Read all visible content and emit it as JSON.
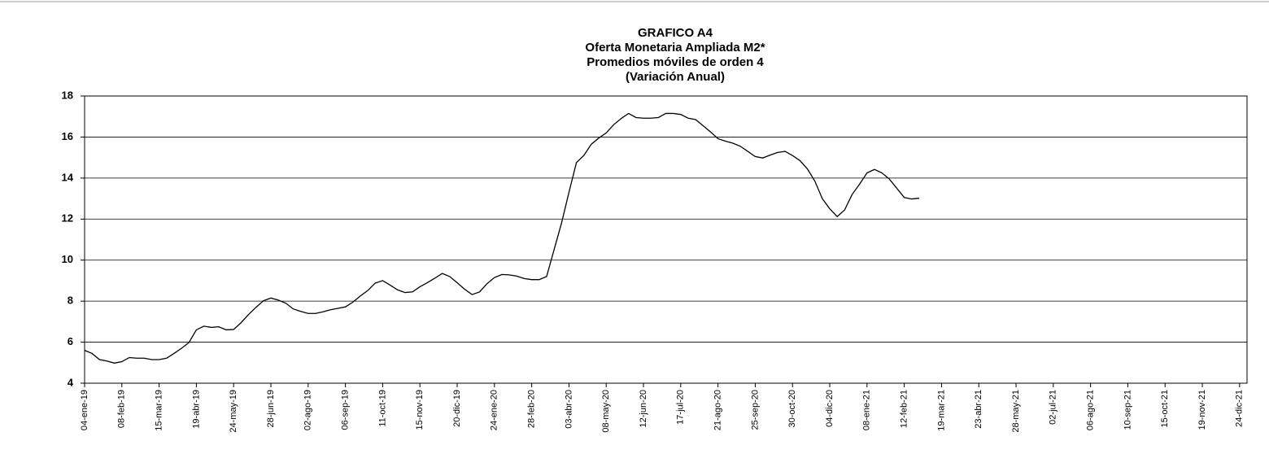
{
  "chart_data": {
    "type": "line",
    "title": "GRAFICO A4",
    "subtitle": [
      "Oferta Monetaria Ampliada M2*",
      "Promedios móviles de orden 4",
      "(Variación Anual)"
    ],
    "categories": [
      "04-ene-19",
      null,
      null,
      null,
      null,
      "08-feb-19",
      null,
      null,
      null,
      null,
      "15-mar-19",
      null,
      null,
      null,
      null,
      "19-abr-19",
      null,
      null,
      null,
      null,
      "24-may-19",
      null,
      null,
      null,
      null,
      "28-jun-19",
      null,
      null,
      null,
      null,
      "02-ago-19",
      null,
      null,
      null,
      null,
      "06-sep-19",
      null,
      null,
      null,
      null,
      "11-oct-19",
      null,
      null,
      null,
      null,
      "15-nov-19",
      null,
      null,
      null,
      null,
      "20-dic-19",
      null,
      null,
      null,
      null,
      "24-ene-20",
      null,
      null,
      null,
      null,
      "28-feb-20",
      null,
      null,
      null,
      null,
      "03-abr-20",
      null,
      null,
      null,
      null,
      "08-may-20",
      null,
      null,
      null,
      null,
      "12-jun-20",
      null,
      null,
      null,
      null,
      "17-jul-20",
      null,
      null,
      null,
      null,
      "21-ago-20",
      null,
      null,
      null,
      null,
      "25-sep-20",
      null,
      null,
      null,
      null,
      "30-oct-20",
      null,
      null,
      null,
      null,
      "04-dic-20",
      null,
      null,
      null,
      null,
      "08-ene-21",
      null,
      null,
      null,
      null,
      "12-feb-21",
      null,
      null,
      null,
      null,
      "19-mar-21",
      null,
      null,
      null,
      null,
      "23-abr-21",
      null,
      null,
      null,
      null,
      "28-may-21",
      null,
      null,
      null,
      null,
      "02-jul-21",
      null,
      null,
      null,
      null,
      "06-ago-21",
      null,
      null,
      null,
      null,
      "10-sep-21",
      null,
      null,
      null,
      null,
      "15-oct-21",
      null,
      null,
      null,
      null,
      "19-nov-21",
      null,
      null,
      null,
      null,
      "24-dic-21"
    ],
    "values": [
      5.6,
      5.45,
      5.15,
      5.08,
      4.98,
      5.05,
      5.25,
      5.22,
      5.22,
      5.15,
      5.15,
      5.22,
      5.45,
      5.7,
      5.98,
      6.6,
      6.78,
      6.72,
      6.75,
      6.6,
      6.62,
      6.95,
      7.35,
      7.7,
      8.02,
      8.15,
      8.05,
      7.9,
      7.62,
      7.5,
      7.4,
      7.4,
      7.48,
      7.58,
      7.65,
      7.72,
      7.95,
      8.25,
      8.52,
      8.88,
      9.0,
      8.78,
      8.55,
      8.42,
      8.45,
      8.7,
      8.9,
      9.12,
      9.35,
      9.2,
      8.9,
      8.58,
      8.32,
      8.45,
      8.85,
      9.15,
      9.3,
      9.28,
      9.22,
      9.1,
      9.05,
      9.05,
      9.2,
      10.5,
      11.8,
      13.3,
      14.75,
      15.1,
      15.65,
      15.95,
      16.2,
      16.6,
      16.9,
      17.15,
      16.95,
      16.92,
      16.92,
      16.95,
      17.15,
      17.15,
      17.1,
      16.92,
      16.85,
      16.55,
      16.25,
      15.92,
      15.8,
      15.7,
      15.55,
      15.3,
      15.05,
      14.98,
      15.12,
      15.25,
      15.3,
      15.1,
      14.85,
      14.45,
      13.85,
      13.0,
      12.5,
      12.12,
      12.45,
      13.2,
      13.7,
      14.25,
      14.42,
      14.25,
      13.95,
      13.5,
      13.05,
      12.98,
      13.02,
      null,
      null,
      null,
      null,
      null,
      null,
      null,
      null,
      null,
      null,
      null,
      null,
      null,
      null,
      null,
      null,
      null,
      null,
      null,
      null,
      null,
      null,
      null,
      null,
      null,
      null,
      null,
      null,
      null,
      null,
      null,
      null,
      null,
      null,
      null,
      null,
      null,
      null,
      null,
      null,
      null,
      null,
      null
    ],
    "color": "#000000",
    "ylim": [
      4,
      18
    ],
    "yticks": [
      4,
      6,
      8,
      10,
      12,
      14,
      16,
      18
    ],
    "grid": true
  }
}
